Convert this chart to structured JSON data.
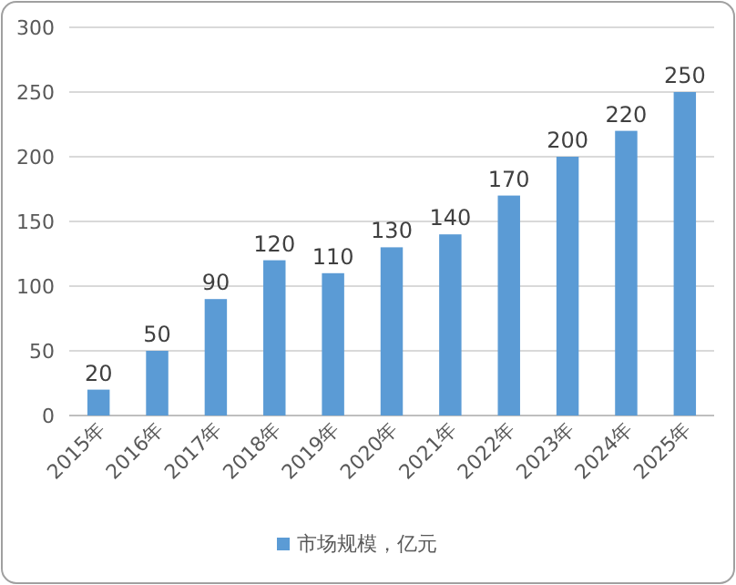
{
  "chart_data": {
    "type": "bar",
    "categories": [
      "2015年",
      "2016年",
      "2017年",
      "2018年",
      "2019年",
      "2020年",
      "2021年",
      "2022年",
      "2023年",
      "2024年",
      "2025年"
    ],
    "series": [
      {
        "name": "市场规模，亿元",
        "color": "#5b9bd5",
        "values": [
          20,
          50,
          90,
          120,
          110,
          130,
          140,
          170,
          200,
          220,
          250
        ]
      }
    ],
    "ylim": [
      0,
      300
    ],
    "yticks": [
      0,
      50,
      100,
      150,
      200,
      250,
      300
    ],
    "grid": "y",
    "data_labels": true,
    "legend": "bottom"
  }
}
